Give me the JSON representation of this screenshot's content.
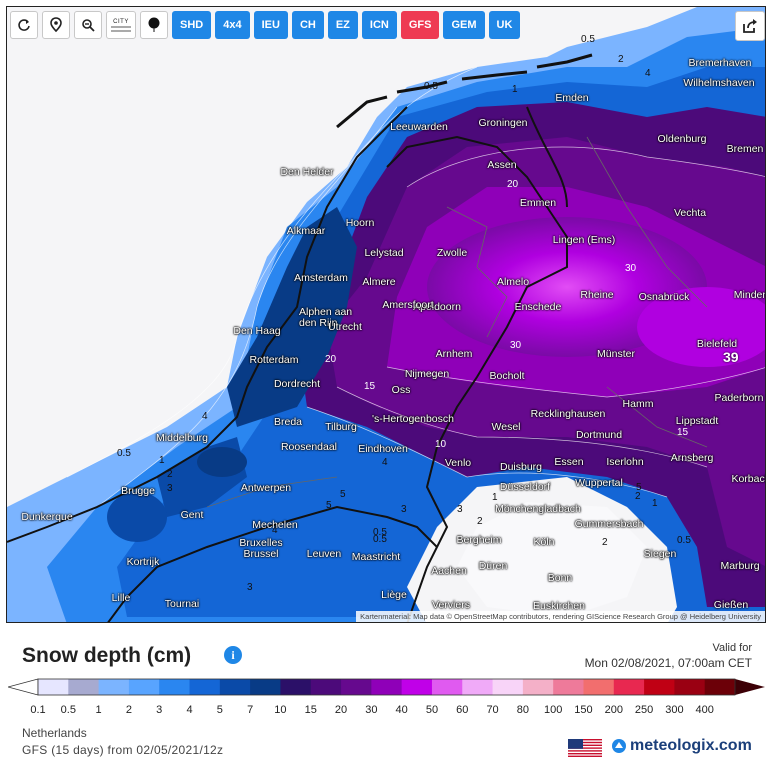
{
  "toolbar": {
    "models": [
      {
        "label": "SHD",
        "active": false
      },
      {
        "label": "4x4",
        "active": false
      },
      {
        "label": "IEU",
        "active": false
      },
      {
        "label": "CH",
        "active": false
      },
      {
        "label": "EZ",
        "active": false
      },
      {
        "label": "ICN",
        "active": false
      },
      {
        "label": "GFS",
        "active": true
      },
      {
        "label": "GEM",
        "active": false
      },
      {
        "label": "UK",
        "active": false
      }
    ],
    "city_toggle": "CITY"
  },
  "map": {
    "attribution": "Kartenmaterial: Map data © OpenStreetMap contributors, rendering GIScience Research Group @ Heidelberg University",
    "max_value_label": "39",
    "cities": [
      "Bremerhaven",
      "Wilhelmshaven",
      "Emden",
      "Leeuwarden",
      "Groningen",
      "Oldenburg",
      "Bremen",
      "Den Helder",
      "Assen",
      "Emmen",
      "Vechta",
      "Alkmaar",
      "Hoorn",
      "Lelystad",
      "Zwolle",
      "Lingen (Ems)",
      "Amsterdam",
      "Almere",
      "Almelo",
      "Rheine",
      "Osnabrück",
      "Minden",
      "Alphen aan den Rijn",
      "Utrecht",
      "Apeldoorn",
      "Enschede",
      "Den Haag",
      "Amersfoort",
      "Arnhem",
      "Münster",
      "Bielefeld",
      "Rotterdam",
      "Nijmegen",
      "Dordrecht",
      "Oss",
      "Bocholt",
      "Paderborn",
      "Breda",
      "Tilburg",
      "'s-Hertogenbosch",
      "Recklinghausen",
      "Hamm",
      "Lippstadt",
      "Middelburg",
      "Roosendaal",
      "Eindhoven",
      "Wesel",
      "Dortmund",
      "Venlo",
      "Duisburg",
      "Essen",
      "Iserlohn",
      "Arnsberg",
      "Brugge",
      "Antwerpen",
      "Düsseldorf",
      "Wuppertal",
      "Korbach",
      "Dunkerque",
      "Gent",
      "Mechelen",
      "Mönchengladbach",
      "Gummersbach",
      "Kortrijk",
      "Bruxelles Brussel",
      "Leuven",
      "Maastricht",
      "Bergheim",
      "Köln",
      "Siegen",
      "Marburg",
      "Düren",
      "Aachen",
      "Bonn",
      "Lille",
      "Tournai",
      "Liège",
      "Verviers",
      "Euskirchen",
      "Gießen"
    ],
    "contour_labels": [
      "0.5",
      "2",
      "4",
      "0.5",
      "1",
      "2",
      "3",
      "4",
      "20",
      "30",
      "30",
      "20",
      "15",
      "10",
      "5",
      "4",
      "3",
      "2",
      "1",
      "0.5",
      "0.5",
      "1",
      "2",
      "3",
      "4",
      "5",
      "15",
      "0.5",
      "1",
      "5",
      "3",
      "0.5",
      "2"
    ]
  },
  "legend": {
    "title": "Snow depth (cm)",
    "valid_label": "Valid for",
    "valid_time": "Mon 02/08/2021, 07:00am CET",
    "ticks": [
      "0.1",
      "0.5",
      "1",
      "2",
      "3",
      "4",
      "5",
      "7",
      "10",
      "15",
      "20",
      "30",
      "40",
      "50",
      "60",
      "70",
      "80",
      "100",
      "150",
      "200",
      "250",
      "300",
      "400"
    ],
    "colors": [
      "#e6e6ff",
      "#a7aad0",
      "#7bb4ff",
      "#58a4ff",
      "#2a86f0",
      "#1466d6",
      "#0a4aa8",
      "#083b86",
      "#2b1068",
      "#4c0a7a",
      "#66098e",
      "#8f00b8",
      "#c000e8",
      "#e05af0",
      "#f0aaf8",
      "#f8d4f8",
      "#f4b0c8",
      "#ee7a9a",
      "#f26e6e",
      "#e82850",
      "#c00014",
      "#9a0012",
      "#6c0008"
    ],
    "region": "Netherlands",
    "run": "GFS (15 days) from 02/05/2021/12z",
    "brand": "meteologix.com"
  }
}
